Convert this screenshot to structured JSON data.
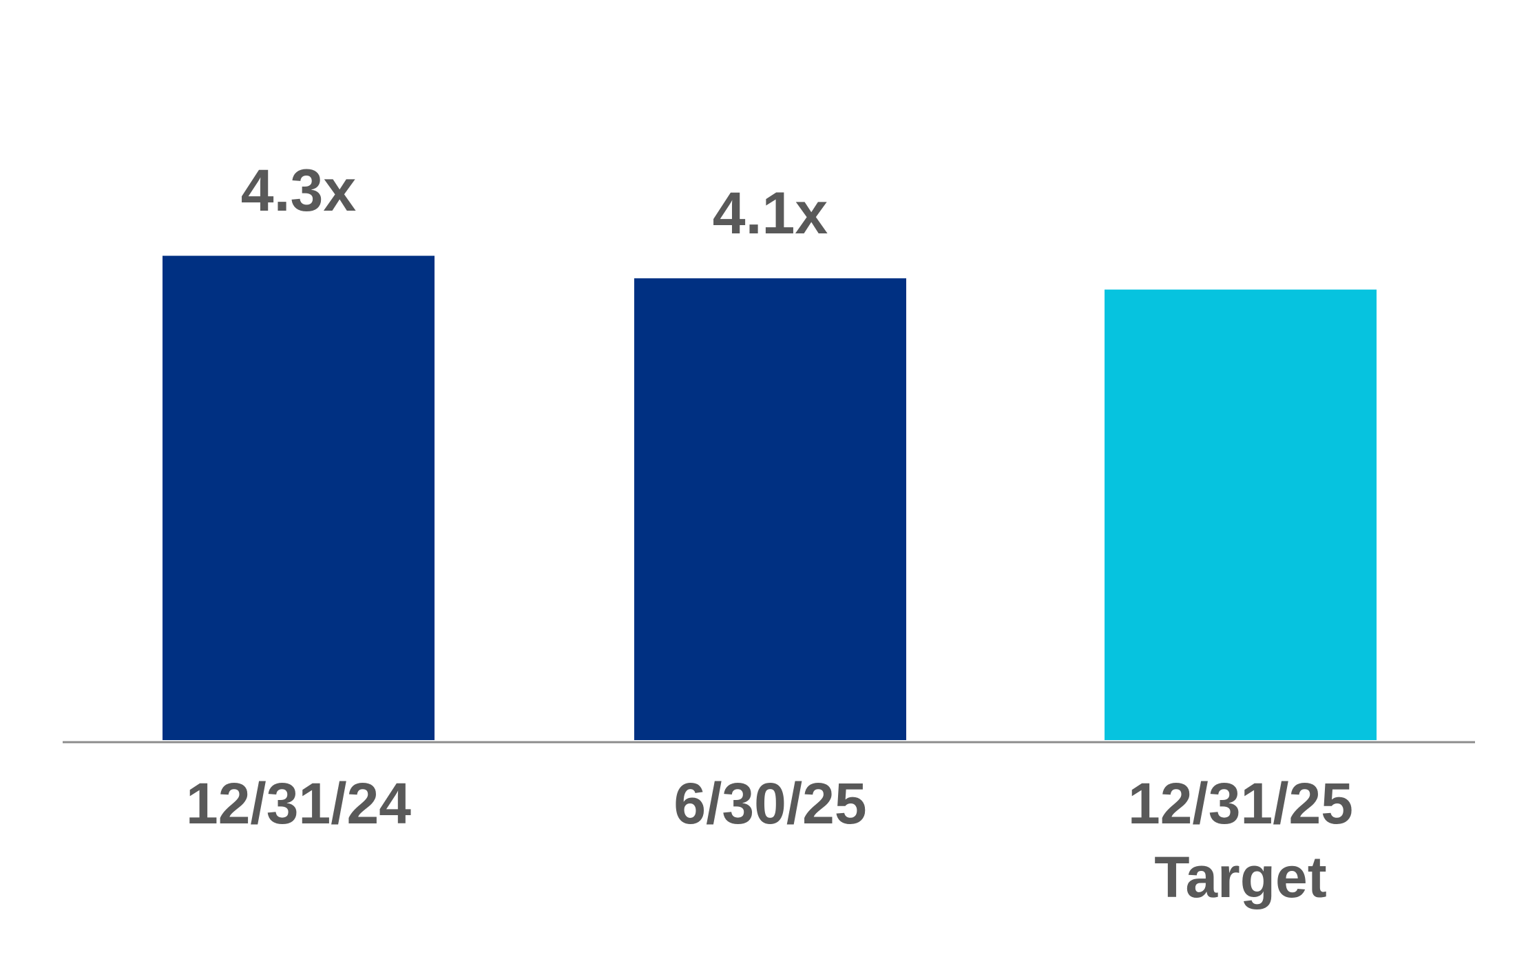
{
  "chart_data": {
    "type": "bar",
    "categories": [
      [
        "12/31/24"
      ],
      [
        "6/30/25"
      ],
      [
        "12/31/25",
        "Target"
      ]
    ],
    "values": [
      4.3,
      4.1,
      4.0
    ],
    "value_labels": [
      "4.3x",
      "4.1x",
      null
    ],
    "colors": [
      "#003082",
      "#003082",
      "#06c3df"
    ]
  }
}
